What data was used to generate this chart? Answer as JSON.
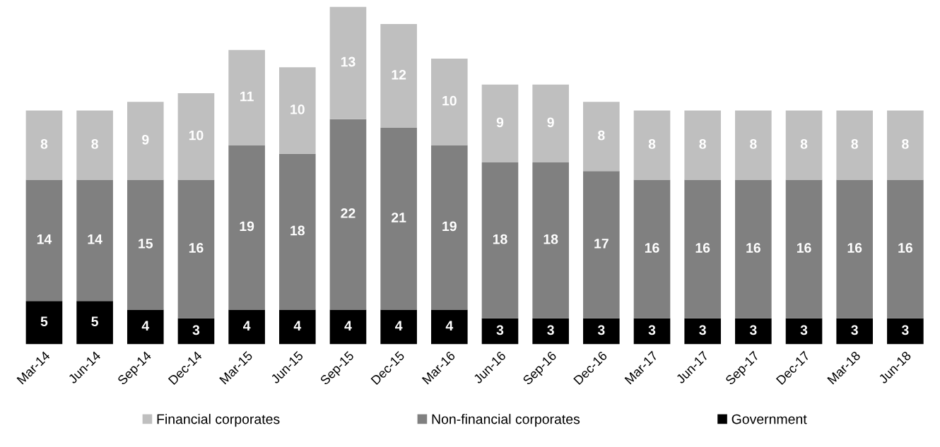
{
  "chart_data": {
    "type": "bar",
    "stacked": true,
    "data_labels": true,
    "legend": "bottom",
    "categories": [
      "Mar-14",
      "Jun-14",
      "Sep-14",
      "Dec-14",
      "Mar-15",
      "Jun-15",
      "Sep-15",
      "Dec-15",
      "Mar-16",
      "Jun-16",
      "Sep-16",
      "Dec-16",
      "Mar-17",
      "Jun-17",
      "Sep-17",
      "Dec-17",
      "Mar-18",
      "Jun-18"
    ],
    "series": [
      {
        "name": "Government",
        "color": "#000000",
        "values": [
          5,
          5,
          4,
          3,
          4,
          4,
          4,
          4,
          4,
          3,
          3,
          3,
          3,
          3,
          3,
          3,
          3,
          3
        ]
      },
      {
        "name": "Non-financial corporates",
        "color": "#808080",
        "values": [
          14,
          14,
          15,
          16,
          19,
          18,
          22,
          21,
          19,
          18,
          18,
          17,
          16,
          16,
          16,
          16,
          16,
          16
        ]
      },
      {
        "name": "Financial corporates",
        "color": "#bfbfbf",
        "values": [
          8,
          8,
          9,
          10,
          11,
          10,
          13,
          12,
          10,
          9,
          9,
          8,
          8,
          8,
          8,
          8,
          8,
          8
        ]
      }
    ]
  }
}
